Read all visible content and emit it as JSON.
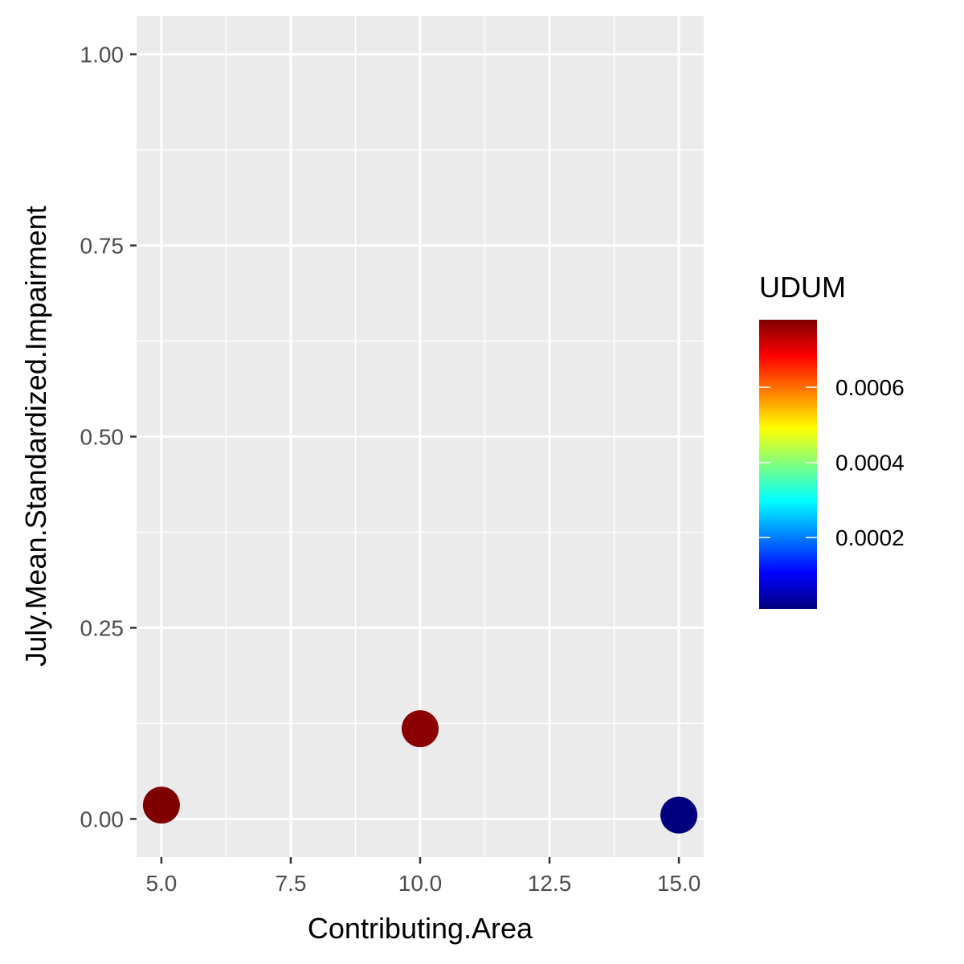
{
  "chart_data": {
    "type": "scatter",
    "title": "",
    "xlabel": "Contributing.Area",
    "ylabel": "July.Mean.Standardized.Impairment",
    "xlim": [
      4.52,
      15.48
    ],
    "ylim": [
      -0.05,
      1.05
    ],
    "x_ticks": [
      5.0,
      7.5,
      10.0,
      12.5,
      15.0
    ],
    "x_tick_labels": [
      "5.0",
      "7.5",
      "10.0",
      "12.5",
      "15.0"
    ],
    "y_ticks": [
      0.0,
      0.25,
      0.5,
      0.75,
      1.0
    ],
    "y_tick_labels": [
      "0.00",
      "0.25",
      "0.50",
      "0.75",
      "1.00"
    ],
    "grid": true,
    "legend": {
      "title": "UDUM",
      "placement": "right",
      "type": "colorbar",
      "range": [
        1e-05,
        0.00078
      ],
      "breaks": [
        0.0002,
        0.0004,
        0.0006
      ],
      "break_labels": [
        "0.0002",
        "0.0004",
        "0.0006"
      ],
      "palette": [
        "#00007f",
        "#0000ff",
        "#007fff",
        "#00ffff",
        "#7fff7f",
        "#ffff00",
        "#ff7f00",
        "#ff0000",
        "#7f0000"
      ]
    },
    "points": [
      {
        "x": 5.0,
        "y": 0.018,
        "color_value": 0.00078,
        "color": "#7f0000"
      },
      {
        "x": 10.0,
        "y": 0.118,
        "color_value": 0.00075,
        "color": "#8b0000"
      },
      {
        "x": 15.0,
        "y": 0.005,
        "color_value": 1e-05,
        "color": "#00007f"
      }
    ]
  }
}
